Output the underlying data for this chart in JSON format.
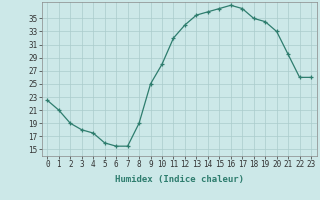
{
  "x": [
    0,
    1,
    2,
    3,
    4,
    5,
    6,
    7,
    8,
    9,
    10,
    11,
    12,
    13,
    14,
    15,
    16,
    17,
    18,
    19,
    20,
    21,
    22,
    23
  ],
  "y": [
    22.5,
    21.0,
    19.0,
    18.0,
    17.5,
    16.0,
    15.5,
    15.5,
    19.0,
    25.0,
    28.0,
    32.0,
    34.0,
    35.5,
    36.0,
    36.5,
    37.0,
    36.5,
    35.0,
    34.5,
    33.0,
    29.5,
    26.0,
    26.0
  ],
  "line_color": "#2e7d6e",
  "marker": "+",
  "bg_color": "#cce8e8",
  "grid_color": "#aacccc",
  "xlabel": "Humidex (Indice chaleur)",
  "xlim": [
    -0.5,
    23.5
  ],
  "ylim": [
    14.0,
    37.5
  ],
  "yticks": [
    15,
    17,
    19,
    21,
    23,
    25,
    27,
    29,
    31,
    33,
    35
  ],
  "xtick_labels": [
    "0",
    "1",
    "2",
    "3",
    "4",
    "5",
    "6",
    "7",
    "8",
    "9",
    "10",
    "11",
    "12",
    "13",
    "14",
    "15",
    "16",
    "17",
    "18",
    "19",
    "20",
    "21",
    "22",
    "23"
  ],
  "font_family": "monospace",
  "tick_fontsize": 5.5,
  "xlabel_fontsize": 6.5
}
